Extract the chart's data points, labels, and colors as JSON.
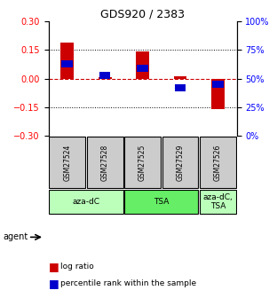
{
  "title": "GDS920 / 2383",
  "samples": [
    "GSM27524",
    "GSM27528",
    "GSM27525",
    "GSM27529",
    "GSM27526"
  ],
  "log_ratios": [
    0.19,
    0.005,
    0.14,
    0.01,
    -0.16
  ],
  "percentile_ranks": [
    0.63,
    0.53,
    0.59,
    0.42,
    0.45
  ],
  "agents": [
    {
      "label": "aza-dC",
      "span": [
        0,
        2
      ],
      "color": "#bbffbb"
    },
    {
      "label": "TSA",
      "span": [
        2,
        4
      ],
      "color": "#66ee66"
    },
    {
      "label": "aza-dC,\nTSA",
      "span": [
        4,
        5
      ],
      "color": "#bbffbb"
    }
  ],
  "ylim_left": [
    -0.3,
    0.3
  ],
  "ylim_right": [
    0,
    100
  ],
  "yticks_left": [
    -0.3,
    -0.15,
    0.0,
    0.15,
    0.3
  ],
  "yticks_right": [
    0,
    25,
    50,
    75,
    100
  ],
  "bar_width": 0.35,
  "red_color": "#cc0000",
  "blue_color": "#0000cc",
  "grid_color": "#000000",
  "zero_line_color": "#cc0000",
  "sample_box_color": "#cccccc",
  "background_color": "#ffffff"
}
